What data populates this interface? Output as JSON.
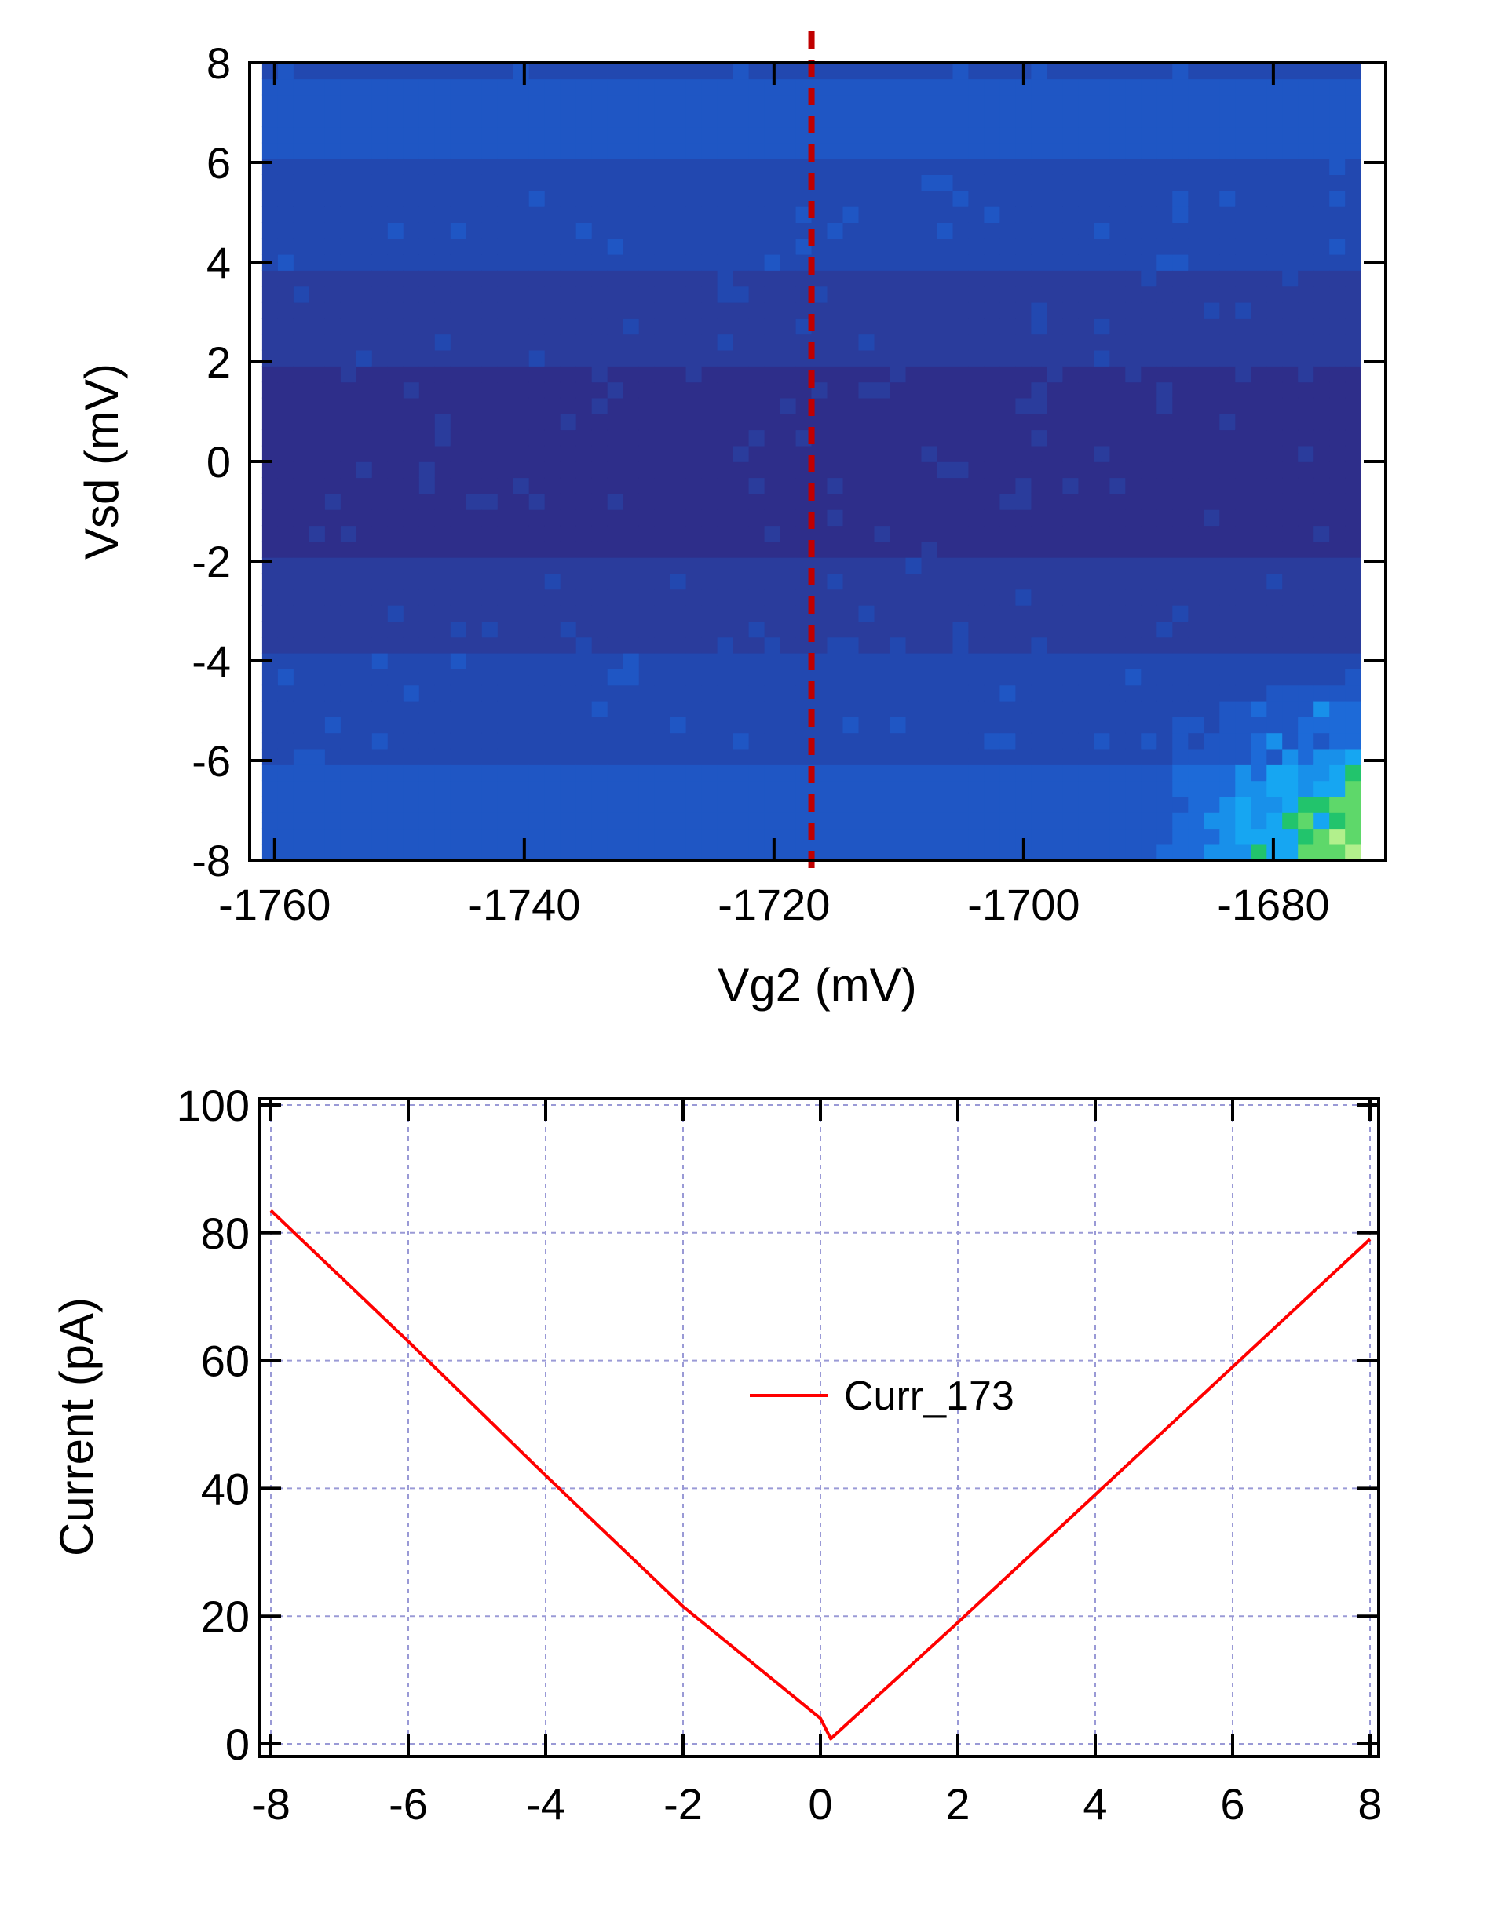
{
  "chart_data": [
    {
      "type": "heatmap",
      "xlabel": "Vg2 (mV)",
      "ylabel": "Vsd (mV)",
      "xlim": [
        -1762,
        -1671
      ],
      "ylim": [
        -8,
        8
      ],
      "x_ticks": [
        "-1760",
        "-1740",
        "-1720",
        "-1700",
        "-1680"
      ],
      "x_tick_values": [
        -1760,
        -1740,
        -1720,
        -1700,
        -1680
      ],
      "y_ticks": [
        "8",
        "6",
        "4",
        "2",
        "0",
        "-2",
        "-4",
        "-6",
        "-8"
      ],
      "y_tick_values": [
        8,
        6,
        4,
        2,
        0,
        -2,
        -4,
        -6,
        -8
      ],
      "marker_line": {
        "x": -1717,
        "style": "dashed",
        "color": "#c00000"
      },
      "colormap": [
        "#2e2e8a",
        "#2a3c9c",
        "#2248b0",
        "#1f56c4",
        "#1d6ad8",
        "#1890ea",
        "#16a6f2",
        "#22c46c",
        "#5ed86a",
        "#b2f08c"
      ],
      "value_description": "Vsd band structure: lowest levels near Vsd=0, rising with |Vsd|; bright spot near Vg2=-1680, Vsd=-8"
    },
    {
      "type": "line",
      "xlabel": "",
      "ylabel": "Current (pA)",
      "xlim": [
        -8,
        8
      ],
      "ylim": [
        0,
        100
      ],
      "x_ticks": [
        "-8",
        "-6",
        "-4",
        "-2",
        "0",
        "2",
        "4",
        "6",
        "8"
      ],
      "x_tick_values": [
        -8,
        -6,
        -4,
        -2,
        0,
        2,
        4,
        6,
        8
      ],
      "y_ticks": [
        "100",
        "80",
        "60",
        "40",
        "20",
        "0"
      ],
      "y_tick_values": [
        100,
        80,
        60,
        40,
        20,
        0
      ],
      "grid": true,
      "legend_position": "center",
      "series": [
        {
          "name": "Curr_173",
          "color": "#ff0000",
          "x": [
            -8,
            -6,
            -4,
            -2,
            0,
            0.15,
            2,
            4,
            6,
            8
          ],
          "y": [
            83.5,
            63,
            42,
            21.5,
            4,
            0.8,
            19,
            39,
            59,
            79
          ]
        }
      ]
    }
  ]
}
